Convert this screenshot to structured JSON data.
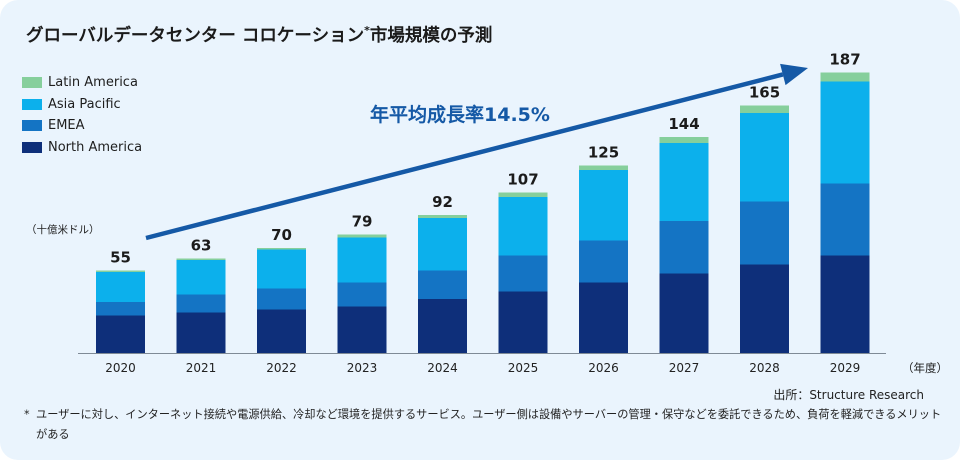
{
  "title": {
    "main": "グローバルデータセンター コロケーション",
    "mark": "*",
    "rest": "市場規模の予測"
  },
  "unit_label": "（十億米ドル）",
  "cagr_label": "年平均成長率14.5%",
  "year_unit": "（年度）",
  "source": "出所：Structure Research",
  "footnote": {
    "mark": "*",
    "text": "ユーザーに対し、インターネット接続や電源供給、冷却など環境を提供するサービス。ユーザー側は設備やサーバーの管理・保守などを委託できるため、負荷を軽減できるメリットがある"
  },
  "colors": {
    "north_america": "#0e2f7a",
    "emea": "#1474c4",
    "asia_pacific": "#0cb0ec",
    "latin_america": "#86cf9c",
    "arrow": "#1559a6"
  },
  "chart_data": {
    "type": "bar",
    "stacked": true,
    "categories": [
      "2020",
      "2021",
      "2022",
      "2023",
      "2024",
      "2025",
      "2026",
      "2027",
      "2028",
      "2029"
    ],
    "totals": [
      55,
      63,
      70,
      79,
      92,
      107,
      125,
      144,
      165,
      187
    ],
    "series": [
      {
        "name": "North America",
        "color": "#0e2f7a",
        "values": [
          25,
          27,
          29,
          31,
          36,
          41,
          47,
          53,
          59,
          65
        ]
      },
      {
        "name": "EMEA",
        "color": "#1474c4",
        "values": [
          9,
          12,
          14,
          16,
          19,
          24,
          28,
          35,
          42,
          48
        ]
      },
      {
        "name": "Asia Pacific",
        "color": "#0cb0ec",
        "values": [
          20,
          23,
          26,
          30,
          35,
          39,
          47,
          52,
          59,
          68
        ]
      },
      {
        "name": "Latin America",
        "color": "#86cf9c",
        "values": [
          1,
          1,
          1,
          2,
          2,
          3,
          3,
          4,
          5,
          6
        ]
      }
    ],
    "legend_position": "top-left",
    "grid": false
  }
}
